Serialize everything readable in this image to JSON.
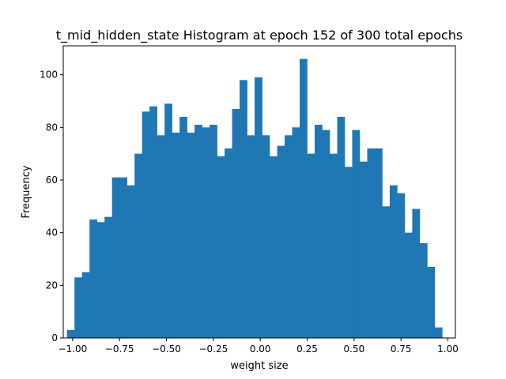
{
  "chart_data": {
    "type": "bar",
    "title": "t_mid_hidden_state Histogram at epoch 152 of 300 total epochs",
    "xlabel": "weight size",
    "ylabel": "Frequency",
    "xlim": [
      -1.05,
      1.04
    ],
    "ylim": [
      0,
      111
    ],
    "bin_start": -1.03,
    "bin_width": 0.04,
    "values": [
      3,
      23,
      25,
      45,
      44,
      46,
      61,
      61,
      58,
      70,
      86,
      88,
      77,
      89,
      78,
      84,
      78,
      81,
      80,
      81,
      69,
      72,
      87,
      98,
      77,
      99,
      77,
      69,
      73,
      77,
      80,
      106,
      70,
      81,
      79,
      70,
      84,
      65,
      79,
      67,
      72,
      72,
      50,
      58,
      55,
      40,
      49,
      36,
      27,
      4
    ],
    "xticks": [
      -1.0,
      -0.75,
      -0.5,
      -0.25,
      0.0,
      0.25,
      0.5,
      0.75,
      1.0
    ],
    "xtick_labels": [
      "−1.00",
      "−0.75",
      "−0.50",
      "−0.25",
      "0.00",
      "0.25",
      "0.50",
      "0.75",
      "1.00"
    ],
    "yticks": [
      0,
      20,
      40,
      60,
      80,
      100
    ],
    "ytick_labels": [
      "0",
      "20",
      "40",
      "60",
      "80",
      "100"
    ],
    "grid": false,
    "bar_color": "#1f77b4"
  }
}
